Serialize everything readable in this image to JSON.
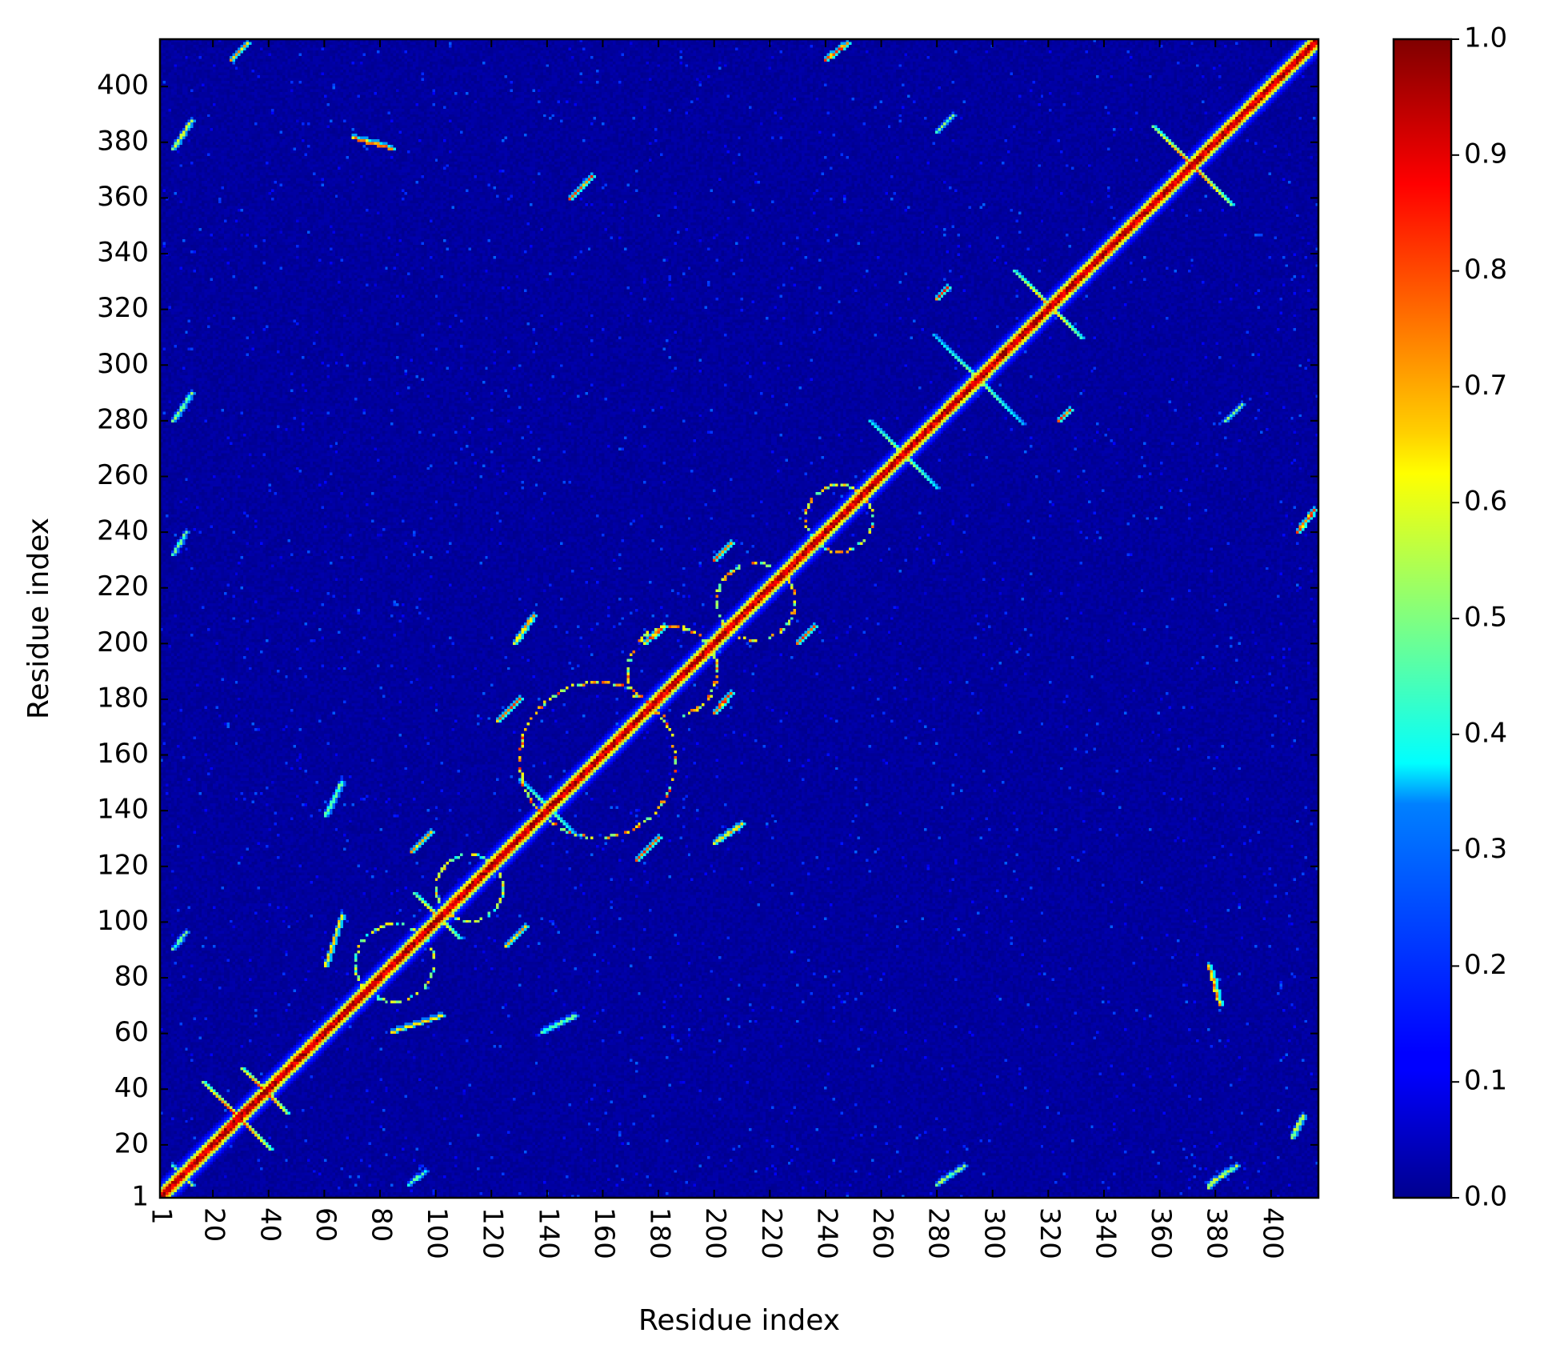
{
  "chart_data": {
    "type": "heatmap",
    "title": "",
    "xlabel": "Residue index",
    "ylabel": "Residue index",
    "xlim": [
      1,
      417
    ],
    "ylim": [
      1,
      417
    ],
    "x_ticks": [
      1,
      20,
      40,
      60,
      80,
      100,
      120,
      140,
      160,
      180,
      200,
      220,
      240,
      260,
      280,
      300,
      320,
      340,
      360,
      380,
      400
    ],
    "y_ticks": [
      1,
      20,
      40,
      60,
      80,
      100,
      120,
      140,
      160,
      180,
      200,
      220,
      240,
      260,
      280,
      300,
      320,
      340,
      360,
      380,
      400
    ],
    "x_tick_rotation_deg": 90,
    "colormap": "jet",
    "colorbar": {
      "range": [
        0.0,
        1.0
      ],
      "ticks": [
        "0.0",
        "0.1",
        "0.2",
        "0.3",
        "0.4",
        "0.5",
        "0.6",
        "0.7",
        "0.8",
        "0.9",
        "1.0"
      ]
    },
    "grid": false,
    "background_value": 0.03,
    "diagonal": {
      "value": 1.0,
      "half_width_residues": 3
    },
    "features": [
      {
        "type": "x-cross",
        "center": [
          28,
          30
        ],
        "size": 12,
        "value": 0.9
      },
      {
        "type": "x-cross",
        "center": [
          38,
          39
        ],
        "size": 8,
        "value": 0.9
      },
      {
        "type": "x-cross",
        "center": [
          100,
          102
        ],
        "size": 8,
        "value": 0.75
      },
      {
        "type": "x-cross",
        "center": [
          140,
          141
        ],
        "size": 10,
        "value": 0.55
      },
      {
        "type": "x-cross",
        "center": [
          268,
          268
        ],
        "size": 12,
        "value": 0.6
      },
      {
        "type": "x-cross",
        "center": [
          295,
          295
        ],
        "size": 16,
        "value": 0.55
      },
      {
        "type": "x-cross",
        "center": [
          320,
          322
        ],
        "size": 12,
        "value": 0.75
      },
      {
        "type": "x-cross",
        "center": [
          372,
          372
        ],
        "size": 14,
        "value": 0.85
      },
      {
        "type": "ring",
        "center": [
          158,
          158
        ],
        "radius": 28,
        "value": 0.85
      },
      {
        "type": "ring",
        "center": [
          185,
          190
        ],
        "radius": 16,
        "value": 0.8
      },
      {
        "type": "ring",
        "center": [
          215,
          215
        ],
        "radius": 14,
        "value": 0.8
      },
      {
        "type": "ring",
        "center": [
          245,
          245
        ],
        "radius": 12,
        "value": 0.8
      },
      {
        "type": "ring",
        "center": [
          112,
          112
        ],
        "radius": 12,
        "value": 0.7
      },
      {
        "type": "ring",
        "center": [
          85,
          85
        ],
        "radius": 14,
        "value": 0.7
      },
      {
        "type": "streak",
        "from": [
          5,
          12
        ],
        "to": [
          12,
          5
        ],
        "value": 0.6
      },
      {
        "type": "streak",
        "from": [
          5,
          378
        ],
        "to": [
          12,
          388
        ],
        "value": 0.6
      },
      {
        "type": "streak",
        "from": [
          378,
          5
        ],
        "to": [
          388,
          12
        ],
        "value": 0.6
      },
      {
        "type": "streak",
        "from": [
          5,
          280
        ],
        "to": [
          12,
          290
        ],
        "value": 0.55
      },
      {
        "type": "streak",
        "from": [
          280,
          5
        ],
        "to": [
          290,
          12
        ],
        "value": 0.55
      },
      {
        "type": "streak",
        "from": [
          5,
          232
        ],
        "to": [
          10,
          240
        ],
        "value": 0.5
      },
      {
        "type": "streak",
        "from": [
          5,
          90
        ],
        "to": [
          10,
          96
        ],
        "value": 0.5
      },
      {
        "type": "streak",
        "from": [
          90,
          5
        ],
        "to": [
          96,
          10
        ],
        "value": 0.5
      },
      {
        "type": "streak",
        "from": [
          60,
          84
        ],
        "to": [
          66,
          102
        ],
        "value": 0.7
      },
      {
        "type": "streak",
        "from": [
          84,
          60
        ],
        "to": [
          102,
          66
        ],
        "value": 0.7
      },
      {
        "type": "streak",
        "from": [
          91,
          125
        ],
        "to": [
          98,
          132
        ],
        "value": 0.75
      },
      {
        "type": "streak",
        "from": [
          125,
          91
        ],
        "to": [
          132,
          98
        ],
        "value": 0.75
      },
      {
        "type": "streak",
        "from": [
          128,
          200
        ],
        "to": [
          135,
          210
        ],
        "value": 0.75
      },
      {
        "type": "streak",
        "from": [
          200,
          128
        ],
        "to": [
          210,
          135
        ],
        "value": 0.75
      },
      {
        "type": "streak",
        "from": [
          122,
          172
        ],
        "to": [
          130,
          180
        ],
        "value": 0.85
      },
      {
        "type": "streak",
        "from": [
          172,
          122
        ],
        "to": [
          180,
          130
        ],
        "value": 0.85
      },
      {
        "type": "streak",
        "from": [
          200,
          175
        ],
        "to": [
          206,
          182
        ],
        "value": 0.85
      },
      {
        "type": "streak",
        "from": [
          175,
          200
        ],
        "to": [
          182,
          206
        ],
        "value": 0.85
      },
      {
        "type": "streak",
        "from": [
          230,
          200
        ],
        "to": [
          236,
          206
        ],
        "value": 0.85
      },
      {
        "type": "streak",
        "from": [
          200,
          230
        ],
        "to": [
          206,
          236
        ],
        "value": 0.85
      },
      {
        "type": "streak",
        "from": [
          280,
          324
        ],
        "to": [
          284,
          328
        ],
        "value": 0.9
      },
      {
        "type": "streak",
        "from": [
          324,
          280
        ],
        "to": [
          328,
          284
        ],
        "value": 0.9
      },
      {
        "type": "streak",
        "from": [
          378,
          4
        ],
        "to": [
          384,
          10
        ],
        "value": 0.55
      },
      {
        "type": "streak",
        "from": [
          280,
          384
        ],
        "to": [
          286,
          390
        ],
        "value": 0.55
      },
      {
        "type": "streak",
        "from": [
          384,
          280
        ],
        "to": [
          390,
          286
        ],
        "value": 0.55
      },
      {
        "type": "streak",
        "from": [
          148,
          360
        ],
        "to": [
          156,
          368
        ],
        "value": 0.85
      },
      {
        "type": "streak",
        "from": [
          382,
          70
        ],
        "to": [
          378,
          84
        ],
        "value": 0.8
      },
      {
        "type": "streak",
        "from": [
          70,
          382
        ],
        "to": [
          84,
          378
        ],
        "value": 0.8
      },
      {
        "type": "streak",
        "from": [
          408,
          22
        ],
        "to": [
          412,
          30
        ],
        "value": 0.6
      },
      {
        "type": "streak",
        "from": [
          410,
          240
        ],
        "to": [
          416,
          248
        ],
        "value": 0.85
      },
      {
        "type": "streak",
        "from": [
          240,
          410
        ],
        "to": [
          248,
          416
        ],
        "value": 0.85
      },
      {
        "type": "streak",
        "from": [
          26,
          410
        ],
        "to": [
          32,
          416
        ],
        "value": 0.75
      },
      {
        "type": "streak",
        "from": [
          60,
          138
        ],
        "to": [
          66,
          150
        ],
        "value": 0.5
      },
      {
        "type": "streak",
        "from": [
          138,
          60
        ],
        "to": [
          150,
          66
        ],
        "value": 0.5
      }
    ]
  }
}
